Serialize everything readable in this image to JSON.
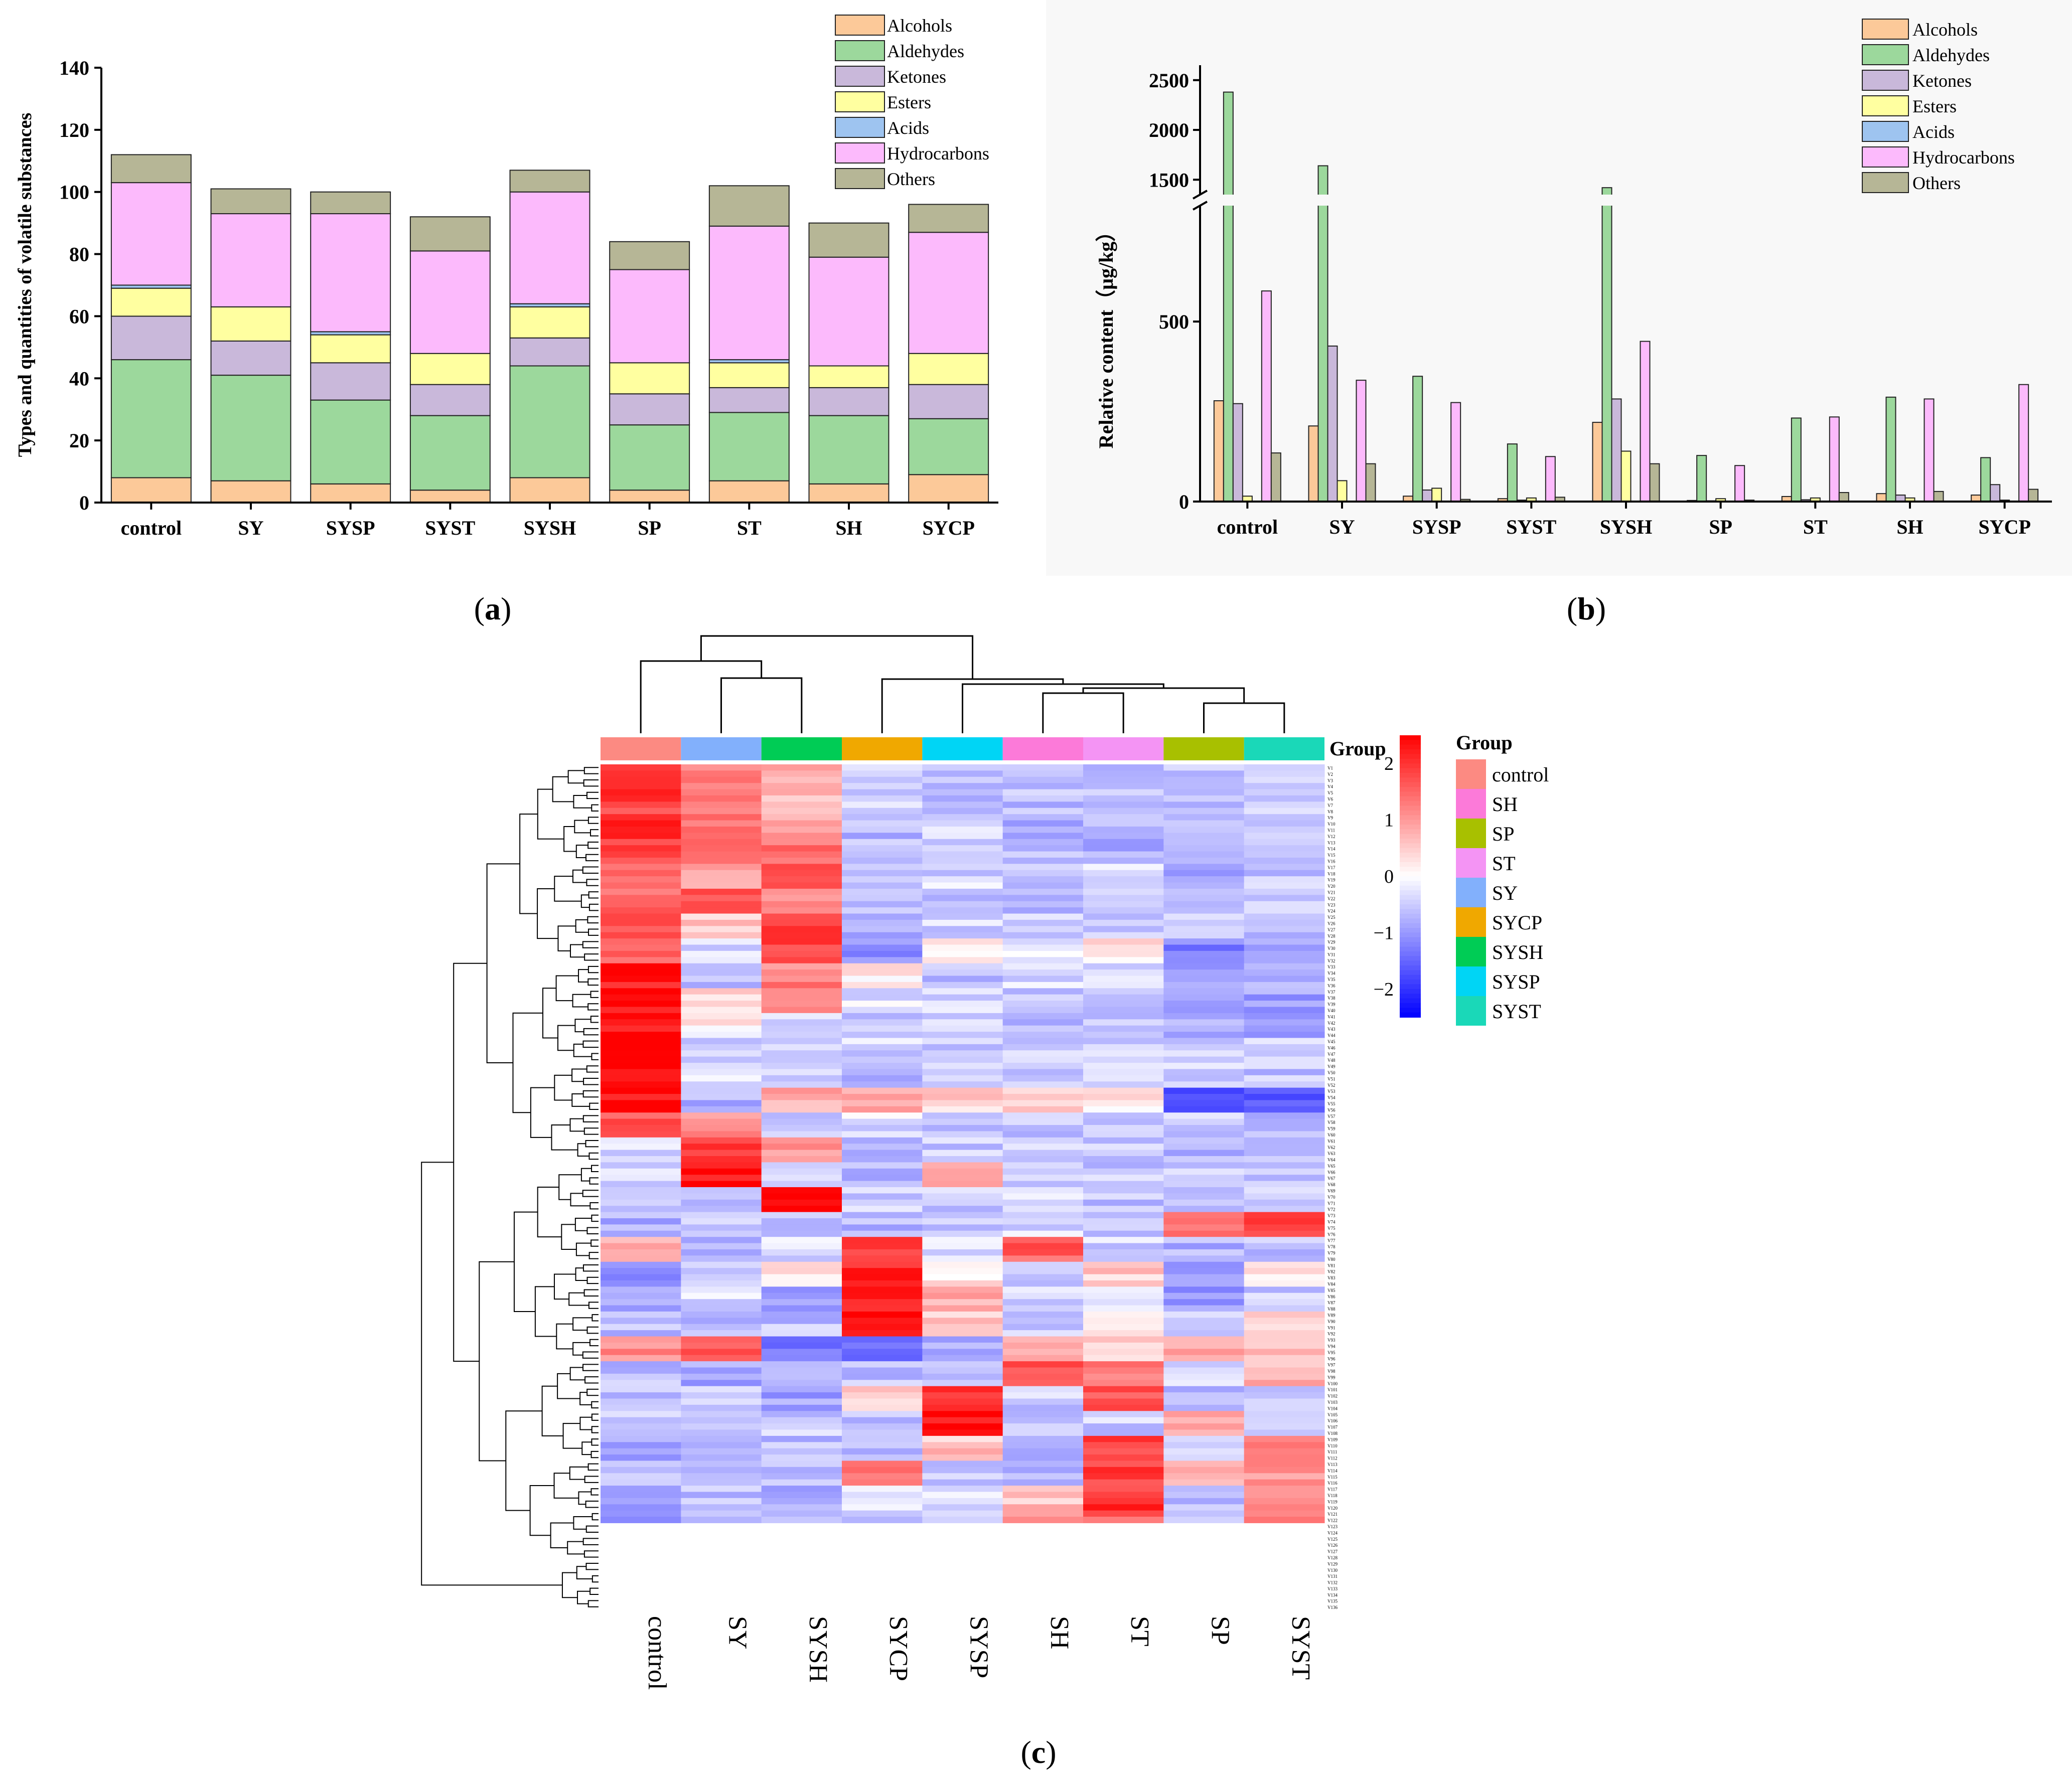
{
  "colors": {
    "Alcohols": "#fcc999",
    "Aldehydes": "#9cd89c",
    "Ketones": "#c9b8da",
    "Esters": "#ffffa0",
    "Acids": "#9ec4f0",
    "Hydrocarbons": "#fcbafc",
    "Others": "#b6b696"
  },
  "chart_data": [
    {
      "panel": "a",
      "type": "bar",
      "stacked": true,
      "panel_label": "(a)",
      "ylabel": "Types and quantities of volatile substances",
      "xlabel": "",
      "ylim": [
        0,
        140
      ],
      "yticks": [
        0,
        20,
        40,
        60,
        80,
        100,
        120,
        140
      ],
      "categories": [
        "control",
        "SY",
        "SYSP",
        "SYST",
        "SYSH",
        "SP",
        "ST",
        "SH",
        "SYCP"
      ],
      "legend_position": "top-right",
      "series": [
        {
          "name": "Alcohols",
          "values": [
            8,
            7,
            6,
            4,
            8,
            4,
            7,
            6,
            9
          ]
        },
        {
          "name": "Aldehydes",
          "values": [
            38,
            34,
            27,
            24,
            36,
            21,
            22,
            22,
            18
          ]
        },
        {
          "name": "Ketones",
          "values": [
            14,
            11,
            12,
            10,
            9,
            10,
            8,
            9,
            11
          ]
        },
        {
          "name": "Esters",
          "values": [
            9,
            11,
            9,
            10,
            10,
            10,
            8,
            7,
            10
          ]
        },
        {
          "name": "Acids",
          "values": [
            1,
            0,
            1,
            0,
            1,
            0,
            1,
            0,
            0
          ]
        },
        {
          "name": "Hydrocarbons",
          "values": [
            33,
            30,
            38,
            33,
            36,
            30,
            43,
            35,
            39
          ]
        },
        {
          "name": "Others",
          "values": [
            9,
            8,
            7,
            11,
            7,
            9,
            13,
            11,
            9
          ]
        }
      ]
    },
    {
      "panel": "b",
      "type": "bar",
      "stacked": false,
      "panel_label": "(b)",
      "ylabel": "Relative content（μg/kg）",
      "xlabel": "",
      "axis_break": [
        620,
        1300
      ],
      "ylim": [
        0,
        2650
      ],
      "yticks_lower": [
        0,
        500
      ],
      "yticks_upper": [
        1500,
        2000,
        2500
      ],
      "categories": [
        "control",
        "SY",
        "SYSP",
        "SYST",
        "SYSH",
        "SP",
        "ST",
        "SH",
        "SYCP"
      ],
      "legend_position": "top-right",
      "series": [
        {
          "name": "Alcohols",
          "values": [
            280,
            210,
            15,
            8,
            220,
            3,
            14,
            22,
            18
          ]
        },
        {
          "name": "Aldehydes",
          "values": [
            2380,
            1640,
            348,
            160,
            1420,
            128,
            232,
            290,
            122
          ]
        },
        {
          "name": "Ketones",
          "values": [
            272,
            432,
            32,
            4,
            285,
            2,
            5,
            18,
            47
          ]
        },
        {
          "name": "Esters",
          "values": [
            15,
            58,
            37,
            10,
            140,
            8,
            10,
            10,
            4
          ]
        },
        {
          "name": "Acids",
          "values": [
            0,
            0,
            0,
            0,
            0,
            0,
            0,
            0,
            0
          ]
        },
        {
          "name": "Hydrocarbons",
          "values": [
            585,
            337,
            275,
            125,
            445,
            100,
            235,
            285,
            325
          ]
        },
        {
          "name": "Others",
          "values": [
            135,
            105,
            6,
            12,
            105,
            4,
            25,
            28,
            34
          ]
        }
      ]
    },
    {
      "panel": "c",
      "type": "heatmap",
      "panel_label": "(c)",
      "columns": [
        "control",
        "SY",
        "SYSH",
        "SYCP",
        "SYSP",
        "SH",
        "ST",
        "SP",
        "SYST"
      ],
      "column_colors": [
        "#fc8a82",
        "#82b0fc",
        "#00cc55",
        "#f0a800",
        "#00d5f5",
        "#fc7ad9",
        "#f494f4",
        "#a8c000",
        "#1ad8b8"
      ],
      "column_label": "Group",
      "row_count": 136,
      "colorbar": {
        "min": -2.5,
        "max": 2.5,
        "ticks": [
          2,
          1,
          0,
          -1,
          -2
        ],
        "tick_labels": [
          "2",
          "1",
          "0",
          "−1",
          "−2"
        ]
      },
      "legend_title": "Group",
      "legend_items": [
        {
          "label": "control",
          "color": "#fc8a82"
        },
        {
          "label": "SH",
          "color": "#fc7ad9"
        },
        {
          "label": "SP",
          "color": "#a8c000"
        },
        {
          "label": "ST",
          "color": "#f494f4"
        },
        {
          "label": "SY",
          "color": "#82b0fc"
        },
        {
          "label": "SYCP",
          "color": "#f0a800"
        },
        {
          "label": "SYSH",
          "color": "#00cc55"
        },
        {
          "label": "SYSP",
          "color": "#00d5f5"
        },
        {
          "label": "SYST",
          "color": "#1ad8b8"
        }
      ],
      "row_labels_note": "136 compound row labels (V1–V136) printed too small to read; drawn as tiny tick text",
      "segments": [
        {
          "rows": 4,
          "values": [
            1.8,
            1.2,
            0.9,
            -0.6,
            -0.6,
            -0.6,
            -0.6,
            -0.6,
            -0.6
          ]
        },
        {
          "rows": 4,
          "values": [
            1.9,
            1.3,
            0.7,
            -0.5,
            -0.6,
            -0.6,
            -0.6,
            -0.6,
            -0.5
          ]
        },
        {
          "rows": 4,
          "values": [
            2.0,
            1.4,
            1.0,
            -0.7,
            -0.5,
            -0.7,
            -0.6,
            -0.6,
            -0.6
          ]
        },
        {
          "rows": 4,
          "values": [
            1.8,
            1.3,
            1.3,
            -0.6,
            -0.6,
            -0.7,
            -0.7,
            -0.5,
            -0.6
          ]
        },
        {
          "rows": 4,
          "values": [
            1.6,
            1.0,
            1.5,
            -0.6,
            -0.4,
            -0.6,
            -0.3,
            -0.8,
            -0.6
          ]
        },
        {
          "rows": 4,
          "values": [
            1.4,
            1.7,
            1.2,
            -0.7,
            -0.5,
            -0.6,
            -0.5,
            -0.6,
            -0.6
          ]
        },
        {
          "rows": 4,
          "values": [
            1.5,
            0.6,
            1.8,
            -0.8,
            -0.4,
            -0.5,
            -0.6,
            -0.6,
            -0.7
          ]
        },
        {
          "rows": 4,
          "values": [
            1.6,
            -0.4,
            1.9,
            -1.0,
            0.2,
            -0.2,
            0.3,
            -1.2,
            -0.9
          ]
        },
        {
          "rows": 4,
          "values": [
            2.3,
            -0.6,
            1.2,
            0.1,
            -0.6,
            -0.4,
            -0.4,
            -0.9,
            -0.8
          ]
        },
        {
          "rows": 4,
          "values": [
            2.4,
            0.5,
            1.0,
            -0.3,
            -0.4,
            -0.7,
            -0.6,
            -0.8,
            -0.9
          ]
        },
        {
          "rows": 4,
          "values": [
            2.4,
            0.2,
            -0.3,
            -0.5,
            -0.5,
            -0.6,
            -0.5,
            -0.7,
            -0.8
          ]
        },
        {
          "rows": 4,
          "values": [
            2.5,
            -0.4,
            -0.6,
            -0.4,
            -0.5,
            -0.5,
            -0.4,
            -0.5,
            -0.5
          ]
        },
        {
          "rows": 4,
          "values": [
            2.5,
            -0.3,
            -0.4,
            -0.6,
            -0.5,
            -0.5,
            -0.5,
            -0.5,
            -0.6
          ]
        },
        {
          "rows": 4,
          "values": [
            2.4,
            -0.8,
            0.9,
            0.8,
            0.5,
            0.6,
            0.3,
            -1.7,
            -1.5
          ]
        },
        {
          "rows": 4,
          "values": [
            1.7,
            1.1,
            -0.6,
            -0.3,
            -0.7,
            -0.6,
            -0.6,
            -0.5,
            -0.6
          ]
        },
        {
          "rows": 4,
          "values": [
            -0.4,
            2.0,
            1.0,
            -0.8,
            -0.5,
            -0.5,
            -0.6,
            -0.8,
            -0.6
          ]
        },
        {
          "rows": 4,
          "values": [
            -0.5,
            2.4,
            -0.6,
            -0.7,
            0.8,
            -0.5,
            -0.5,
            -0.6,
            -0.7
          ]
        },
        {
          "rows": 4,
          "values": [
            -0.6,
            -0.5,
            2.5,
            -0.5,
            -0.5,
            -0.4,
            -0.6,
            -0.5,
            -0.6
          ]
        },
        {
          "rows": 4,
          "values": [
            -0.8,
            -0.6,
            -0.6,
            -0.7,
            -0.5,
            -0.4,
            -0.6,
            1.4,
            1.7
          ]
        },
        {
          "rows": 4,
          "values": [
            0.8,
            -0.6,
            -0.4,
            1.9,
            -0.3,
            1.6,
            -0.4,
            -0.7,
            -0.6
          ]
        },
        {
          "rows": 4,
          "values": [
            -1.0,
            -0.5,
            0.4,
            2.1,
            0.3,
            -0.5,
            0.5,
            -1.1,
            0.4
          ]
        },
        {
          "rows": 4,
          "values": [
            -0.7,
            -0.3,
            -0.8,
            2.3,
            0.9,
            -0.4,
            -0.3,
            -1.0,
            -0.5
          ]
        },
        {
          "rows": 4,
          "values": [
            -0.6,
            -0.6,
            -0.6,
            2.4,
            0.5,
            -0.6,
            0.4,
            -0.5,
            0.3
          ]
        },
        {
          "rows": 4,
          "values": [
            1.2,
            1.5,
            -1.4,
            -1.6,
            -0.8,
            0.6,
            0.4,
            0.9,
            0.7
          ]
        },
        {
          "rows": 4,
          "values": [
            -0.6,
            -0.8,
            -0.4,
            -0.6,
            -0.6,
            1.6,
            1.4,
            -0.5,
            0.8
          ]
        },
        {
          "rows": 4,
          "values": [
            -0.7,
            -0.6,
            -0.9,
            0.4,
            2.0,
            -0.5,
            1.7,
            -0.6,
            -0.7
          ]
        },
        {
          "rows": 4,
          "values": [
            -0.6,
            -0.6,
            -0.5,
            -0.6,
            2.4,
            -0.5,
            -0.5,
            0.9,
            -0.5
          ]
        },
        {
          "rows": 4,
          "values": [
            -0.9,
            -0.7,
            -0.6,
            -0.6,
            0.6,
            -0.8,
            1.8,
            -0.6,
            1.2
          ]
        },
        {
          "rows": 4,
          "values": [
            -0.7,
            -0.6,
            -0.5,
            1.2,
            -0.6,
            -0.6,
            1.9,
            0.8,
            1.0
          ]
        },
        {
          "rows": 4,
          "values": [
            -0.9,
            -0.6,
            -0.7,
            -0.4,
            -0.4,
            0.6,
            2.0,
            -0.7,
            1.3
          ]
        },
        {
          "rows": 2,
          "values": [
            -0.9,
            -0.7,
            -0.7,
            -0.6,
            -0.6,
            0.9,
            1.6,
            -0.5,
            1.4
          ]
        }
      ]
    }
  ]
}
